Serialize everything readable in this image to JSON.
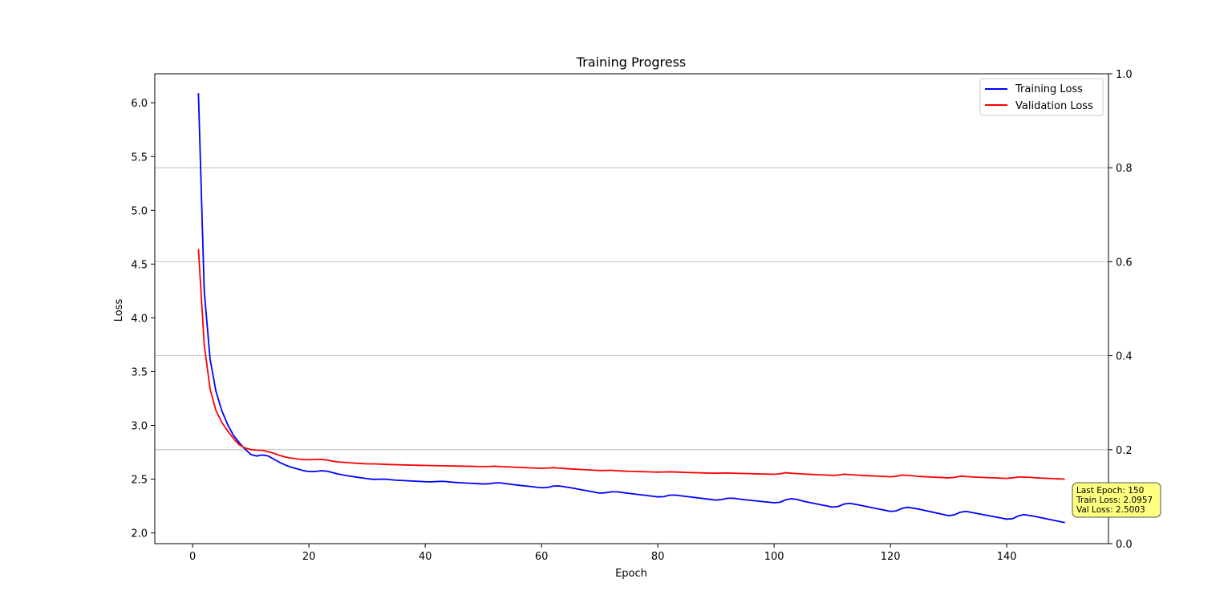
{
  "chart_data": {
    "type": "line",
    "title": "Training Progress",
    "xlabel": "Epoch",
    "ylabel": "Loss",
    "xlim": [
      -6.5,
      157.5
    ],
    "ylim": [
      1.9,
      6.27
    ],
    "xticks": [
      0,
      20,
      40,
      60,
      80,
      100,
      120,
      140
    ],
    "yticks": [
      2.0,
      2.5,
      3.0,
      3.5,
      4.0,
      4.5,
      5.0,
      5.5,
      6.0
    ],
    "y2lim": [
      0.0,
      1.0
    ],
    "y2ticks": [
      0.0,
      0.2,
      0.4,
      0.6,
      0.8,
      1.0
    ],
    "grid": "right-axis horizontal",
    "legend": "upper right",
    "series": [
      {
        "name": "Training Loss",
        "color": "#0000ff",
        "anchors": [
          [
            1,
            6.09
          ],
          [
            2,
            4.25
          ],
          [
            3,
            3.62
          ],
          [
            4,
            3.32
          ],
          [
            5,
            3.14
          ],
          [
            6,
            3.01
          ],
          [
            7,
            2.91
          ],
          [
            8,
            2.84
          ],
          [
            9,
            2.78
          ],
          [
            10,
            2.73
          ],
          [
            11,
            2.715
          ],
          [
            12,
            2.725
          ],
          [
            13,
            2.715
          ],
          [
            14,
            2.685
          ],
          [
            15,
            2.655
          ],
          [
            16,
            2.63
          ],
          [
            17,
            2.61
          ],
          [
            18,
            2.595
          ],
          [
            19,
            2.58
          ],
          [
            20,
            2.57
          ],
          [
            21,
            2.57
          ],
          [
            22,
            2.578
          ],
          [
            23,
            2.575
          ],
          [
            24,
            2.562
          ],
          [
            25,
            2.548
          ],
          [
            27,
            2.528
          ],
          [
            30,
            2.505
          ],
          [
            31,
            2.498
          ],
          [
            33,
            2.5
          ],
          [
            35,
            2.49
          ],
          [
            40,
            2.476
          ],
          [
            41,
            2.475
          ],
          [
            43,
            2.48
          ],
          [
            45,
            2.47
          ],
          [
            50,
            2.455
          ],
          [
            51,
            2.457
          ],
          [
            52,
            2.465
          ],
          [
            53,
            2.465
          ],
          [
            55,
            2.45
          ],
          [
            60,
            2.42
          ],
          [
            61,
            2.422
          ],
          [
            62,
            2.435
          ],
          [
            63,
            2.437
          ],
          [
            65,
            2.42
          ],
          [
            70,
            2.37
          ],
          [
            71,
            2.373
          ],
          [
            72,
            2.382
          ],
          [
            73,
            2.382
          ],
          [
            75,
            2.368
          ],
          [
            80,
            2.335
          ],
          [
            81,
            2.337
          ],
          [
            82,
            2.35
          ],
          [
            83,
            2.352
          ],
          [
            85,
            2.338
          ],
          [
            90,
            2.305
          ],
          [
            91,
            2.31
          ],
          [
            92,
            2.322
          ],
          [
            93,
            2.322
          ],
          [
            95,
            2.308
          ],
          [
            100,
            2.28
          ],
          [
            101,
            2.285
          ],
          [
            102,
            2.308
          ],
          [
            103,
            2.318
          ],
          [
            104,
            2.31
          ],
          [
            105,
            2.295
          ],
          [
            110,
            2.24
          ],
          [
            111,
            2.245
          ],
          [
            112,
            2.268
          ],
          [
            113,
            2.275
          ],
          [
            115,
            2.255
          ],
          [
            120,
            2.2
          ],
          [
            121,
            2.205
          ],
          [
            122,
            2.228
          ],
          [
            123,
            2.238
          ],
          [
            125,
            2.22
          ],
          [
            130,
            2.16
          ],
          [
            131,
            2.168
          ],
          [
            132,
            2.192
          ],
          [
            133,
            2.2
          ],
          [
            135,
            2.18
          ],
          [
            140,
            2.128
          ],
          [
            141,
            2.132
          ],
          [
            142,
            2.158
          ],
          [
            143,
            2.17
          ],
          [
            145,
            2.152
          ],
          [
            150,
            2.0957
          ]
        ]
      },
      {
        "name": "Validation Loss",
        "color": "#ff0000",
        "anchors": [
          [
            1,
            4.64
          ],
          [
            2,
            3.75
          ],
          [
            3,
            3.34
          ],
          [
            4,
            3.14
          ],
          [
            5,
            3.03
          ],
          [
            6,
            2.95
          ],
          [
            7,
            2.88
          ],
          [
            8,
            2.82
          ],
          [
            9,
            2.79
          ],
          [
            10,
            2.775
          ],
          [
            11,
            2.77
          ],
          [
            12,
            2.768
          ],
          [
            13,
            2.755
          ],
          [
            14,
            2.74
          ],
          [
            15,
            2.72
          ],
          [
            16,
            2.705
          ],
          [
            17,
            2.695
          ],
          [
            18,
            2.688
          ],
          [
            19,
            2.682
          ],
          [
            20,
            2.68
          ],
          [
            21,
            2.682
          ],
          [
            22,
            2.683
          ],
          [
            23,
            2.678
          ],
          [
            24,
            2.668
          ],
          [
            25,
            2.66
          ],
          [
            27,
            2.652
          ],
          [
            30,
            2.642
          ],
          [
            31,
            2.642
          ],
          [
            32,
            2.64
          ],
          [
            35,
            2.634
          ],
          [
            40,
            2.627
          ],
          [
            45,
            2.622
          ],
          [
            50,
            2.617
          ],
          [
            51,
            2.618
          ],
          [
            52,
            2.62
          ],
          [
            53,
            2.617
          ],
          [
            55,
            2.612
          ],
          [
            60,
            2.6
          ],
          [
            61,
            2.602
          ],
          [
            62,
            2.607
          ],
          [
            63,
            2.602
          ],
          [
            65,
            2.595
          ],
          [
            70,
            2.58
          ],
          [
            72,
            2.582
          ],
          [
            73,
            2.578
          ],
          [
            75,
            2.573
          ],
          [
            80,
            2.565
          ],
          [
            82,
            2.568
          ],
          [
            83,
            2.566
          ],
          [
            85,
            2.562
          ],
          [
            90,
            2.555
          ],
          [
            92,
            2.557
          ],
          [
            95,
            2.552
          ],
          [
            100,
            2.545
          ],
          [
            101,
            2.55
          ],
          [
            102,
            2.56
          ],
          [
            103,
            2.555
          ],
          [
            105,
            2.548
          ],
          [
            110,
            2.535
          ],
          [
            111,
            2.538
          ],
          [
            112,
            2.546
          ],
          [
            113,
            2.542
          ],
          [
            115,
            2.535
          ],
          [
            120,
            2.522
          ],
          [
            121,
            2.526
          ],
          [
            122,
            2.538
          ],
          [
            123,
            2.535
          ],
          [
            125,
            2.525
          ],
          [
            130,
            2.512
          ],
          [
            131,
            2.516
          ],
          [
            132,
            2.527
          ],
          [
            133,
            2.524
          ],
          [
            135,
            2.518
          ],
          [
            140,
            2.507
          ],
          [
            141,
            2.512
          ],
          [
            142,
            2.52
          ],
          [
            143,
            2.518
          ],
          [
            144,
            2.517
          ],
          [
            145,
            2.512
          ],
          [
            150,
            2.5003
          ]
        ]
      }
    ],
    "annotation": {
      "lines": [
        "Last Epoch: 150",
        "Train Loss: 2.0957",
        "Val Loss: 2.5003"
      ],
      "background": "#ffff80",
      "anchor": [
        150,
        2.0957
      ]
    }
  }
}
